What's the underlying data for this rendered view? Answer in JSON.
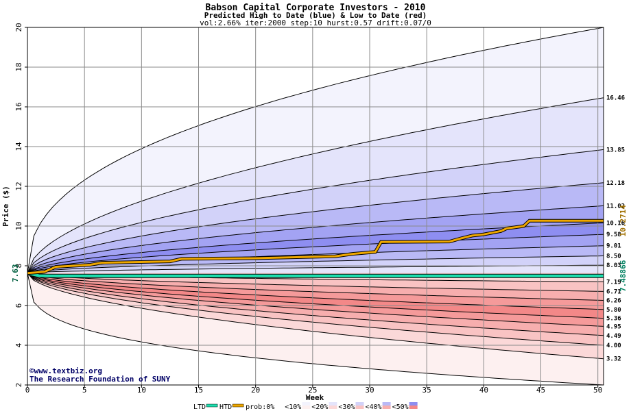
{
  "chart_data": {
    "type": "area",
    "title": "Babson Capital Corporate Investors - 2010",
    "subtitle": "Predicted High to Date (blue) &  Low to Date (red)",
    "params": "vol:2.66% iter:2000 step:10 hurst:0.57 drift:0.07/0",
    "xlabel": "Week",
    "ylabel": "Price ($)",
    "xlim": [
      0,
      50.5
    ],
    "ylim": [
      2,
      20
    ],
    "x_ticks": [
      0,
      5,
      10,
      15,
      20,
      25,
      30,
      35,
      40,
      45,
      50
    ],
    "y_ticks": [
      2,
      4,
      6,
      8,
      10,
      12,
      14,
      16,
      18,
      20
    ],
    "start_price": 7.63,
    "start_price_label": "7.63",
    "high_bands": [
      {
        "end": 20.0,
        "shape": 0.42,
        "color": "#f3f3fd"
      },
      {
        "end": 16.46,
        "shape": 0.55,
        "label": "16.46",
        "color": "#e4e4fb"
      },
      {
        "end": 13.85,
        "shape": 0.55,
        "label": "13.85",
        "color": "#d2d2f9"
      },
      {
        "end": 12.18,
        "shape": 0.55,
        "label": "12.18",
        "color": "#b9b9f6"
      },
      {
        "end": 11.02,
        "shape": 0.55,
        "label": "11.02",
        "color": "#a3a3f3"
      },
      {
        "end": 10.16,
        "shape": 0.55,
        "label": "10.16",
        "color": "#8e8ef1"
      },
      {
        "end": 9.58,
        "shape": 0.55,
        "label": "9.58",
        "color": "#a3a3f3"
      },
      {
        "end": 9.01,
        "shape": 0.55,
        "label": "9.01",
        "color": "#b9b9f6"
      },
      {
        "end": 8.5,
        "shape": 0.55,
        "label": "8.50",
        "color": "#d2d2f9"
      },
      {
        "end": 8.03,
        "shape": 0.55,
        "label": "8.03",
        "color": "#e4e4fb"
      }
    ],
    "low_bands": [
      {
        "end": 2.0,
        "shape": 0.3,
        "color": "#fdf0f0"
      },
      {
        "end": 3.32,
        "shape": 0.55,
        "label": "3.32",
        "color": "#fbd8d8"
      },
      {
        "end": 4.0,
        "shape": 0.55,
        "label": "4.00",
        "color": "#f9c3c3"
      },
      {
        "end": 4.49,
        "shape": 0.55,
        "label": "4.49",
        "color": "#f7aeae"
      },
      {
        "end": 4.95,
        "shape": 0.55,
        "label": "4.95",
        "color": "#f59a9a"
      },
      {
        "end": 5.36,
        "shape": 0.55,
        "label": "5.36",
        "color": "#f38888"
      },
      {
        "end": 5.8,
        "shape": 0.55,
        "label": "5.80",
        "color": "#f59a9a"
      },
      {
        "end": 6.26,
        "shape": 0.55,
        "label": "6.26",
        "color": "#f7aeae"
      },
      {
        "end": 6.71,
        "shape": 0.55,
        "label": "6.71",
        "color": "#f9c3c3"
      },
      {
        "end": 7.19,
        "shape": 0.55,
        "label": "7.19",
        "color": "#fbd8d8"
      }
    ],
    "htd_series": {
      "name": "HTD",
      "x": [
        0,
        1.5,
        2.5,
        5.5,
        6.5,
        12.5,
        13.5,
        20,
        27,
        28.5,
        30.5,
        31,
        37,
        38,
        39,
        40,
        41.5,
        42,
        43.5,
        44,
        50.5
      ],
      "y": [
        7.63,
        7.7,
        7.95,
        8.05,
        8.15,
        8.22,
        8.35,
        8.38,
        8.48,
        8.6,
        8.7,
        9.2,
        9.22,
        9.38,
        9.52,
        9.58,
        9.75,
        9.88,
        10.0,
        10.27,
        10.27
      ],
      "end_label": "10.2714",
      "color": "#f0a800"
    },
    "ltd_series": {
      "name": "LTD",
      "x": [
        0,
        1,
        2,
        5,
        50.5
      ],
      "y": [
        7.63,
        7.5,
        7.49,
        7.489,
        7.48866
      ],
      "end_label": "7.48866",
      "color": "#1de0b0"
    },
    "credit_lines": [
      "©www.textbiz.org",
      "The Research Foundation of SUNY"
    ],
    "legend": [
      {
        "label": "LTD",
        "kind": "line",
        "color": "#1de0b0"
      },
      {
        "label": "HTD",
        "kind": "line",
        "color": "#f0a800"
      },
      {
        "label": "prob:0%",
        "kind": "swatch",
        "top": "#ffffff",
        "bottom": "#ffffff"
      },
      {
        "label": "<10%",
        "kind": "swatch",
        "top": "#f3f3fd",
        "bottom": "#fdf0f0"
      },
      {
        "label": "<20%",
        "kind": "swatch",
        "top": "#e4e4fb",
        "bottom": "#fbd8d8"
      },
      {
        "label": "<30%",
        "kind": "swatch",
        "top": "#d2d2f9",
        "bottom": "#f9c3c3"
      },
      {
        "label": "<40%",
        "kind": "swatch",
        "top": "#b9b9f6",
        "bottom": "#f7aeae"
      },
      {
        "label": "<50%",
        "kind": "swatch",
        "top": "#8e8ef1",
        "bottom": "#f38888"
      }
    ],
    "grid": true
  }
}
